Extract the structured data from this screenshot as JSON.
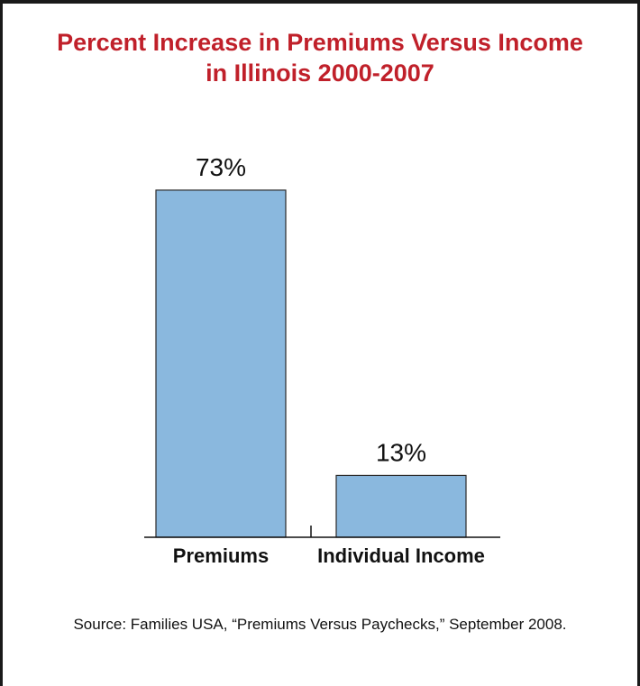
{
  "title_line1": "Percent Increase in Premiums Versus Income",
  "title_line2": "in Illinois 2000-2007",
  "source": "Source: Families USA, “Premiums Versus Paychecks,” September 2008.",
  "colors": {
    "title": "#c0202a",
    "bar_fill": "#8ab8de",
    "bar_stroke": "#2a2a2a"
  },
  "chart_data": {
    "type": "bar",
    "title": "Percent Increase in Premiums Versus Income in Illinois 2000-2007",
    "categories": [
      "Premiums",
      "Individual Income"
    ],
    "values": [
      73,
      13
    ],
    "data_labels": [
      "73%",
      "13%"
    ],
    "xlabel": "",
    "ylabel": "",
    "ylim": [
      0,
      80
    ],
    "grid": false,
    "legend": "none"
  }
}
